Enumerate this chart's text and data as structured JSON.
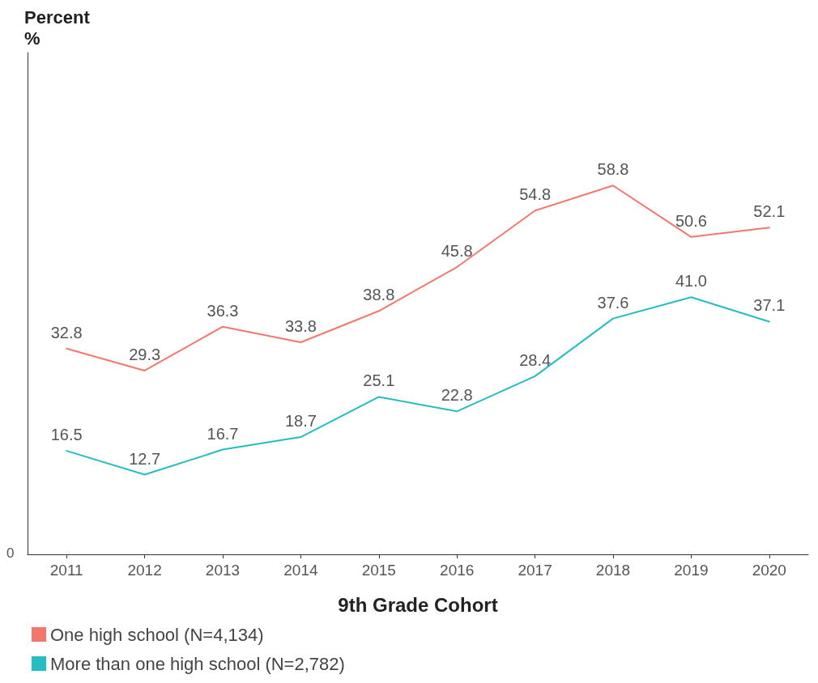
{
  "chart_data": {
    "type": "line",
    "xlabel": "9th Grade Cohort",
    "categories": [
      "2011",
      "2012",
      "2013",
      "2014",
      "2015",
      "2016",
      "2017",
      "2018",
      "2019",
      "2020"
    ],
    "series": [
      {
        "name": "One high school (N=4,134)",
        "color": "#f2786c",
        "values": [
          32.8,
          29.3,
          36.3,
          33.8,
          38.8,
          45.8,
          54.8,
          58.8,
          50.6,
          52.1
        ],
        "value_labels": [
          "32.8",
          "29.3",
          "36.3",
          "33.8",
          "38.8",
          "45.8",
          "54.8",
          "58.8",
          "50.6",
          "52.1"
        ]
      },
      {
        "name": "More than one high school (N=2,782)",
        "color": "#25bcc2",
        "values": [
          16.5,
          12.7,
          16.7,
          18.7,
          25.1,
          22.8,
          28.4,
          37.6,
          41.0,
          37.1
        ],
        "value_labels": [
          "16.5",
          "12.7",
          "16.7",
          "18.7",
          "25.1",
          "22.8",
          "28.4",
          "37.6",
          "41.0",
          "37.1"
        ]
      }
    ],
    "annotations": [
      "Percent\n%",
      "0"
    ],
    "grid": false,
    "legend": "bottom left",
    "marker": "none",
    "line_style": "solid"
  }
}
